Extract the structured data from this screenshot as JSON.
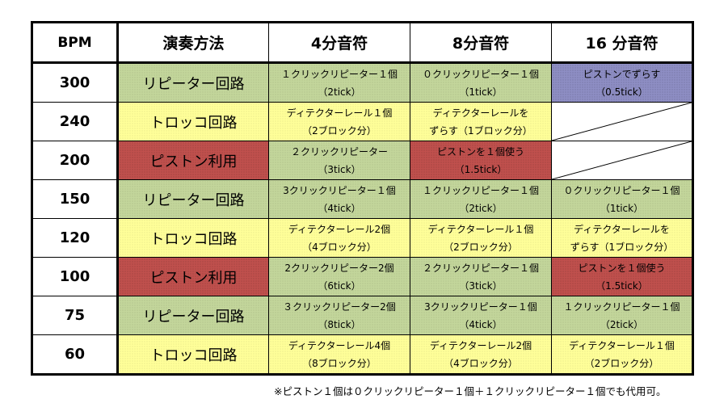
{
  "table": {
    "headers": [
      "BPM",
      "演奏方法",
      "4分音符",
      "8分音符",
      "16 分音符"
    ],
    "rows": [
      {
        "bpm": "300",
        "method": "リピーター回路",
        "method_color": "green",
        "cells": [
          {
            "l1": "１クリックリピーター１個",
            "l2": "（2tick）",
            "color": "green"
          },
          {
            "l1": "０クリックリピーター１個",
            "l2": "（1tick）",
            "color": "green"
          },
          {
            "l1": "ピストンでずらす",
            "l2": "（0.5tick）",
            "color": "blue"
          }
        ]
      },
      {
        "bpm": "240",
        "method": "トロッコ回路",
        "method_color": "yellow",
        "cells": [
          {
            "l1": "ディテクターレール１個",
            "l2": "（2ブロック分）",
            "color": "yellow"
          },
          {
            "l1": "ディテクターレールを",
            "l2": "ずらす（1ブロック分）",
            "color": "yellow"
          },
          {
            "l1": "",
            "l2": "",
            "color": "white",
            "slash": true
          }
        ]
      },
      {
        "bpm": "200",
        "method": "ピストン利用",
        "method_color": "red",
        "cells": [
          {
            "l1": "２クリックリピーター",
            "l2": "（3tick）",
            "color": "green"
          },
          {
            "l1": "ピストンを１個使う",
            "l2": "（1.5tick）",
            "color": "red"
          },
          {
            "l1": "",
            "l2": "",
            "color": "white",
            "slash": true
          }
        ]
      },
      {
        "bpm": "150",
        "method": "リピーター回路",
        "method_color": "green",
        "cells": [
          {
            "l1": "3クリックリピーター１個",
            "l2": "（4tick）",
            "color": "green"
          },
          {
            "l1": "１クリックリピーター１個",
            "l2": "（2tick）",
            "color": "green"
          },
          {
            "l1": "０クリックリピーター１個",
            "l2": "（1tick）",
            "color": "green"
          }
        ]
      },
      {
        "bpm": "120",
        "method": "トロッコ回路",
        "method_color": "yellow",
        "cells": [
          {
            "l1": "ディテクターレール2個",
            "l2": "（4ブロック分）",
            "color": "yellow"
          },
          {
            "l1": "ディテクターレール１個",
            "l2": "（2ブロック分）",
            "color": "yellow"
          },
          {
            "l1": "ディテクターレールを",
            "l2": "ずらす（1ブロック分）",
            "color": "yellow"
          }
        ]
      },
      {
        "bpm": "100",
        "method": "ピストン利用",
        "method_color": "red",
        "cells": [
          {
            "l1": "2クリックリピーター2個",
            "l2": "（6tick）",
            "color": "green"
          },
          {
            "l1": "２クリックリピーター１個",
            "l2": "（3tick）",
            "color": "green"
          },
          {
            "l1": "ピストンを１個使う",
            "l2": "（1.5tick）",
            "color": "red"
          }
        ]
      },
      {
        "bpm": "75",
        "method": "リピーター回路",
        "method_color": "green",
        "cells": [
          {
            "l1": "３クリックリピーター2個",
            "l2": "（8tick）",
            "color": "green"
          },
          {
            "l1": "3クリックリピーター１個",
            "l2": "（4tick）",
            "color": "green"
          },
          {
            "l1": "１クリックリピーター１個",
            "l2": "（2tick）",
            "color": "green"
          }
        ]
      },
      {
        "bpm": "60",
        "method": "トロッコ回路",
        "method_color": "yellow",
        "cells": [
          {
            "l1": "ディテクターレール4個",
            "l2": "（8ブロック分）",
            "color": "yellow"
          },
          {
            "l1": "ディテクターレール2個",
            "l2": "（4ブロック分）",
            "color": "yellow"
          },
          {
            "l1": "ディテクターレール１個",
            "l2": "（2ブロック分）",
            "color": "yellow"
          }
        ]
      }
    ]
  },
  "footnote": "※ピストン１個は０クリックリピーター１個＋１クリックリピーター１個でも代用可。"
}
